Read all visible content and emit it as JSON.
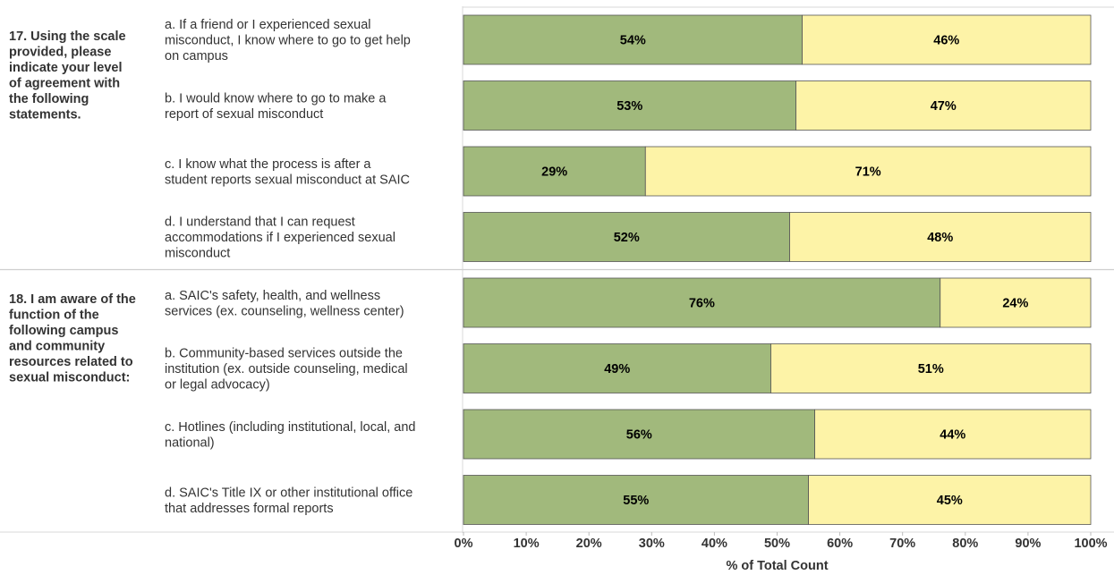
{
  "colors": {
    "agree": "#a1b97c",
    "disagree": "#fdf3a7",
    "text": "#333333"
  },
  "chart_data": {
    "type": "bar",
    "orientation": "horizontal",
    "stacked": true,
    "xlabel": "% of Total Count",
    "xlim": [
      0,
      100
    ],
    "x_ticks": [
      "0%",
      "10%",
      "20%",
      "30%",
      "40%",
      "50%",
      "60%",
      "70%",
      "80%",
      "90%",
      "100%"
    ],
    "groups": [
      {
        "title": "17. Using the scale provided, please indicate your level of agreement with the following statements.",
        "title_lines": [
          "17. Using the scale",
          "provided, please",
          "indicate your level",
          "of agreement with",
          "the following",
          "statements."
        ],
        "items": [
          {
            "label_lines": [
              "a. If a friend or I experienced sexual",
              "misconduct, I know where to go to get help",
              "on campus"
            ],
            "values": [
              54,
              46
            ]
          },
          {
            "label_lines": [
              "b. I would know where to go to make a",
              "report of sexual misconduct"
            ],
            "values": [
              53,
              47
            ]
          },
          {
            "label_lines": [
              "c. I know what the process is after a",
              "student reports sexual misconduct at SAIC"
            ],
            "values": [
              29,
              71
            ]
          },
          {
            "label_lines": [
              "d. I understand that I can request",
              "accommodations if I experienced sexual",
              "misconduct"
            ],
            "values": [
              52,
              48
            ]
          }
        ]
      },
      {
        "title": "18. I am aware of the function of the following campus and community resources related to sexual misconduct:",
        "title_lines": [
          "18. I am aware of the",
          "function of the",
          "following campus",
          "and community",
          "resources related to",
          "sexual misconduct:"
        ],
        "items": [
          {
            "label_lines": [
              "a. SAIC's safety, health, and wellness",
              "services (ex. counseling, wellness center)"
            ],
            "values": [
              76,
              24
            ]
          },
          {
            "label_lines": [
              "b. Community-based services outside the",
              "institution (ex. outside counseling, medical",
              "or legal advocacy)"
            ],
            "values": [
              49,
              51
            ]
          },
          {
            "label_lines": [
              "c. Hotlines (including institutional, local, and",
              "national)"
            ],
            "values": [
              56,
              44
            ]
          },
          {
            "label_lines": [
              "d. SAIC's Title IX or other institutional office",
              "that addresses formal reports"
            ],
            "values": [
              55,
              45
            ]
          }
        ]
      }
    ]
  }
}
